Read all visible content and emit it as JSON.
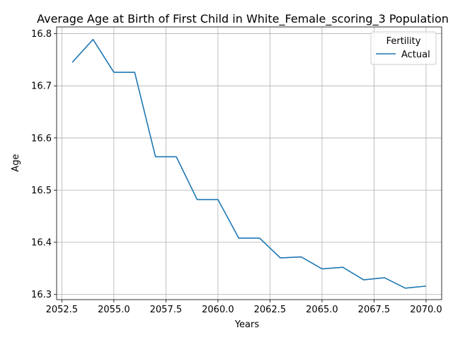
{
  "chart_data": {
    "type": "line",
    "title": "Average Age at Birth of First Child in White_Female_scoring_3 Population",
    "xlabel": "Years",
    "ylabel": "Age",
    "xlim": [
      2052.25,
      2070.75
    ],
    "ylim": [
      16.29,
      16.813
    ],
    "x_ticks": [
      2052.5,
      2055.0,
      2057.5,
      2060.0,
      2062.5,
      2065.0,
      2067.5,
      2070.0
    ],
    "x_tick_labels": [
      "2052.5",
      "2055.0",
      "2057.5",
      "2060.0",
      "2062.5",
      "2065.0",
      "2067.5",
      "2070.0"
    ],
    "y_ticks": [
      16.3,
      16.4,
      16.5,
      16.6,
      16.7,
      16.8
    ],
    "y_tick_labels": [
      "16.3",
      "16.4",
      "16.5",
      "16.6",
      "16.7",
      "16.8"
    ],
    "grid": true,
    "legend": {
      "title": "Fertility",
      "placement": "top-right"
    },
    "series": [
      {
        "name": "Actual",
        "color": "#1f77b4",
        "x": [
          2053,
          2054,
          2055,
          2056,
          2057,
          2058,
          2059,
          2060,
          2061,
          2062,
          2063,
          2064,
          2065,
          2066,
          2067,
          2068,
          2069,
          2070
        ],
        "y": [
          16.745,
          16.789,
          16.726,
          16.726,
          16.564,
          16.564,
          16.482,
          16.482,
          16.408,
          16.408,
          16.37,
          16.372,
          16.349,
          16.352,
          16.328,
          16.332,
          16.312,
          16.316
        ]
      }
    ]
  }
}
